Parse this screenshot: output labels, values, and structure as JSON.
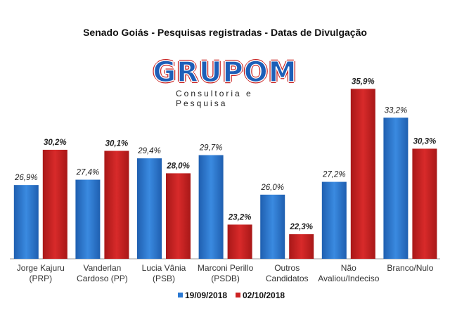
{
  "chart_data": {
    "type": "bar",
    "title": "Senado Goiás - Pesquisas registradas - Datas de Divulgação",
    "logo_text": "GRUPOM",
    "logo_subtitle": "Consultoria e Pesquisa",
    "categories": [
      [
        "Jorge Kajuru",
        "(PRP)"
      ],
      [
        "Vanderlan",
        "Cardoso (PP)"
      ],
      [
        "Lucia Vânia",
        "(PSB)"
      ],
      [
        "Marconi Perillo",
        "(PSDB)"
      ],
      [
        "Outros",
        "Candidatos"
      ],
      [
        "Não",
        "Avaliou/Indeciso"
      ],
      [
        "Branco/Nulo"
      ]
    ],
    "series": [
      {
        "name": "19/09/2018",
        "color": "#2a78d2",
        "values": [
          26.9,
          27.4,
          29.4,
          29.7,
          26.0,
          27.2,
          33.2
        ],
        "labels": [
          "26,9%",
          "27,4%",
          "29,4%",
          "29,7%",
          "26,0%",
          "27,2%",
          "33,2%"
        ]
      },
      {
        "name": "02/10/2018",
        "color": "#cc2222",
        "values": [
          30.2,
          30.1,
          28.0,
          23.2,
          22.3,
          35.9,
          30.3
        ],
        "labels": [
          "30,2%",
          "30,1%",
          "28,0%",
          "23,2%",
          "22,3%",
          "35,9%",
          "30,3%"
        ]
      }
    ],
    "ylim": [
      20,
      37
    ],
    "legend": "bottom",
    "grid": false
  }
}
